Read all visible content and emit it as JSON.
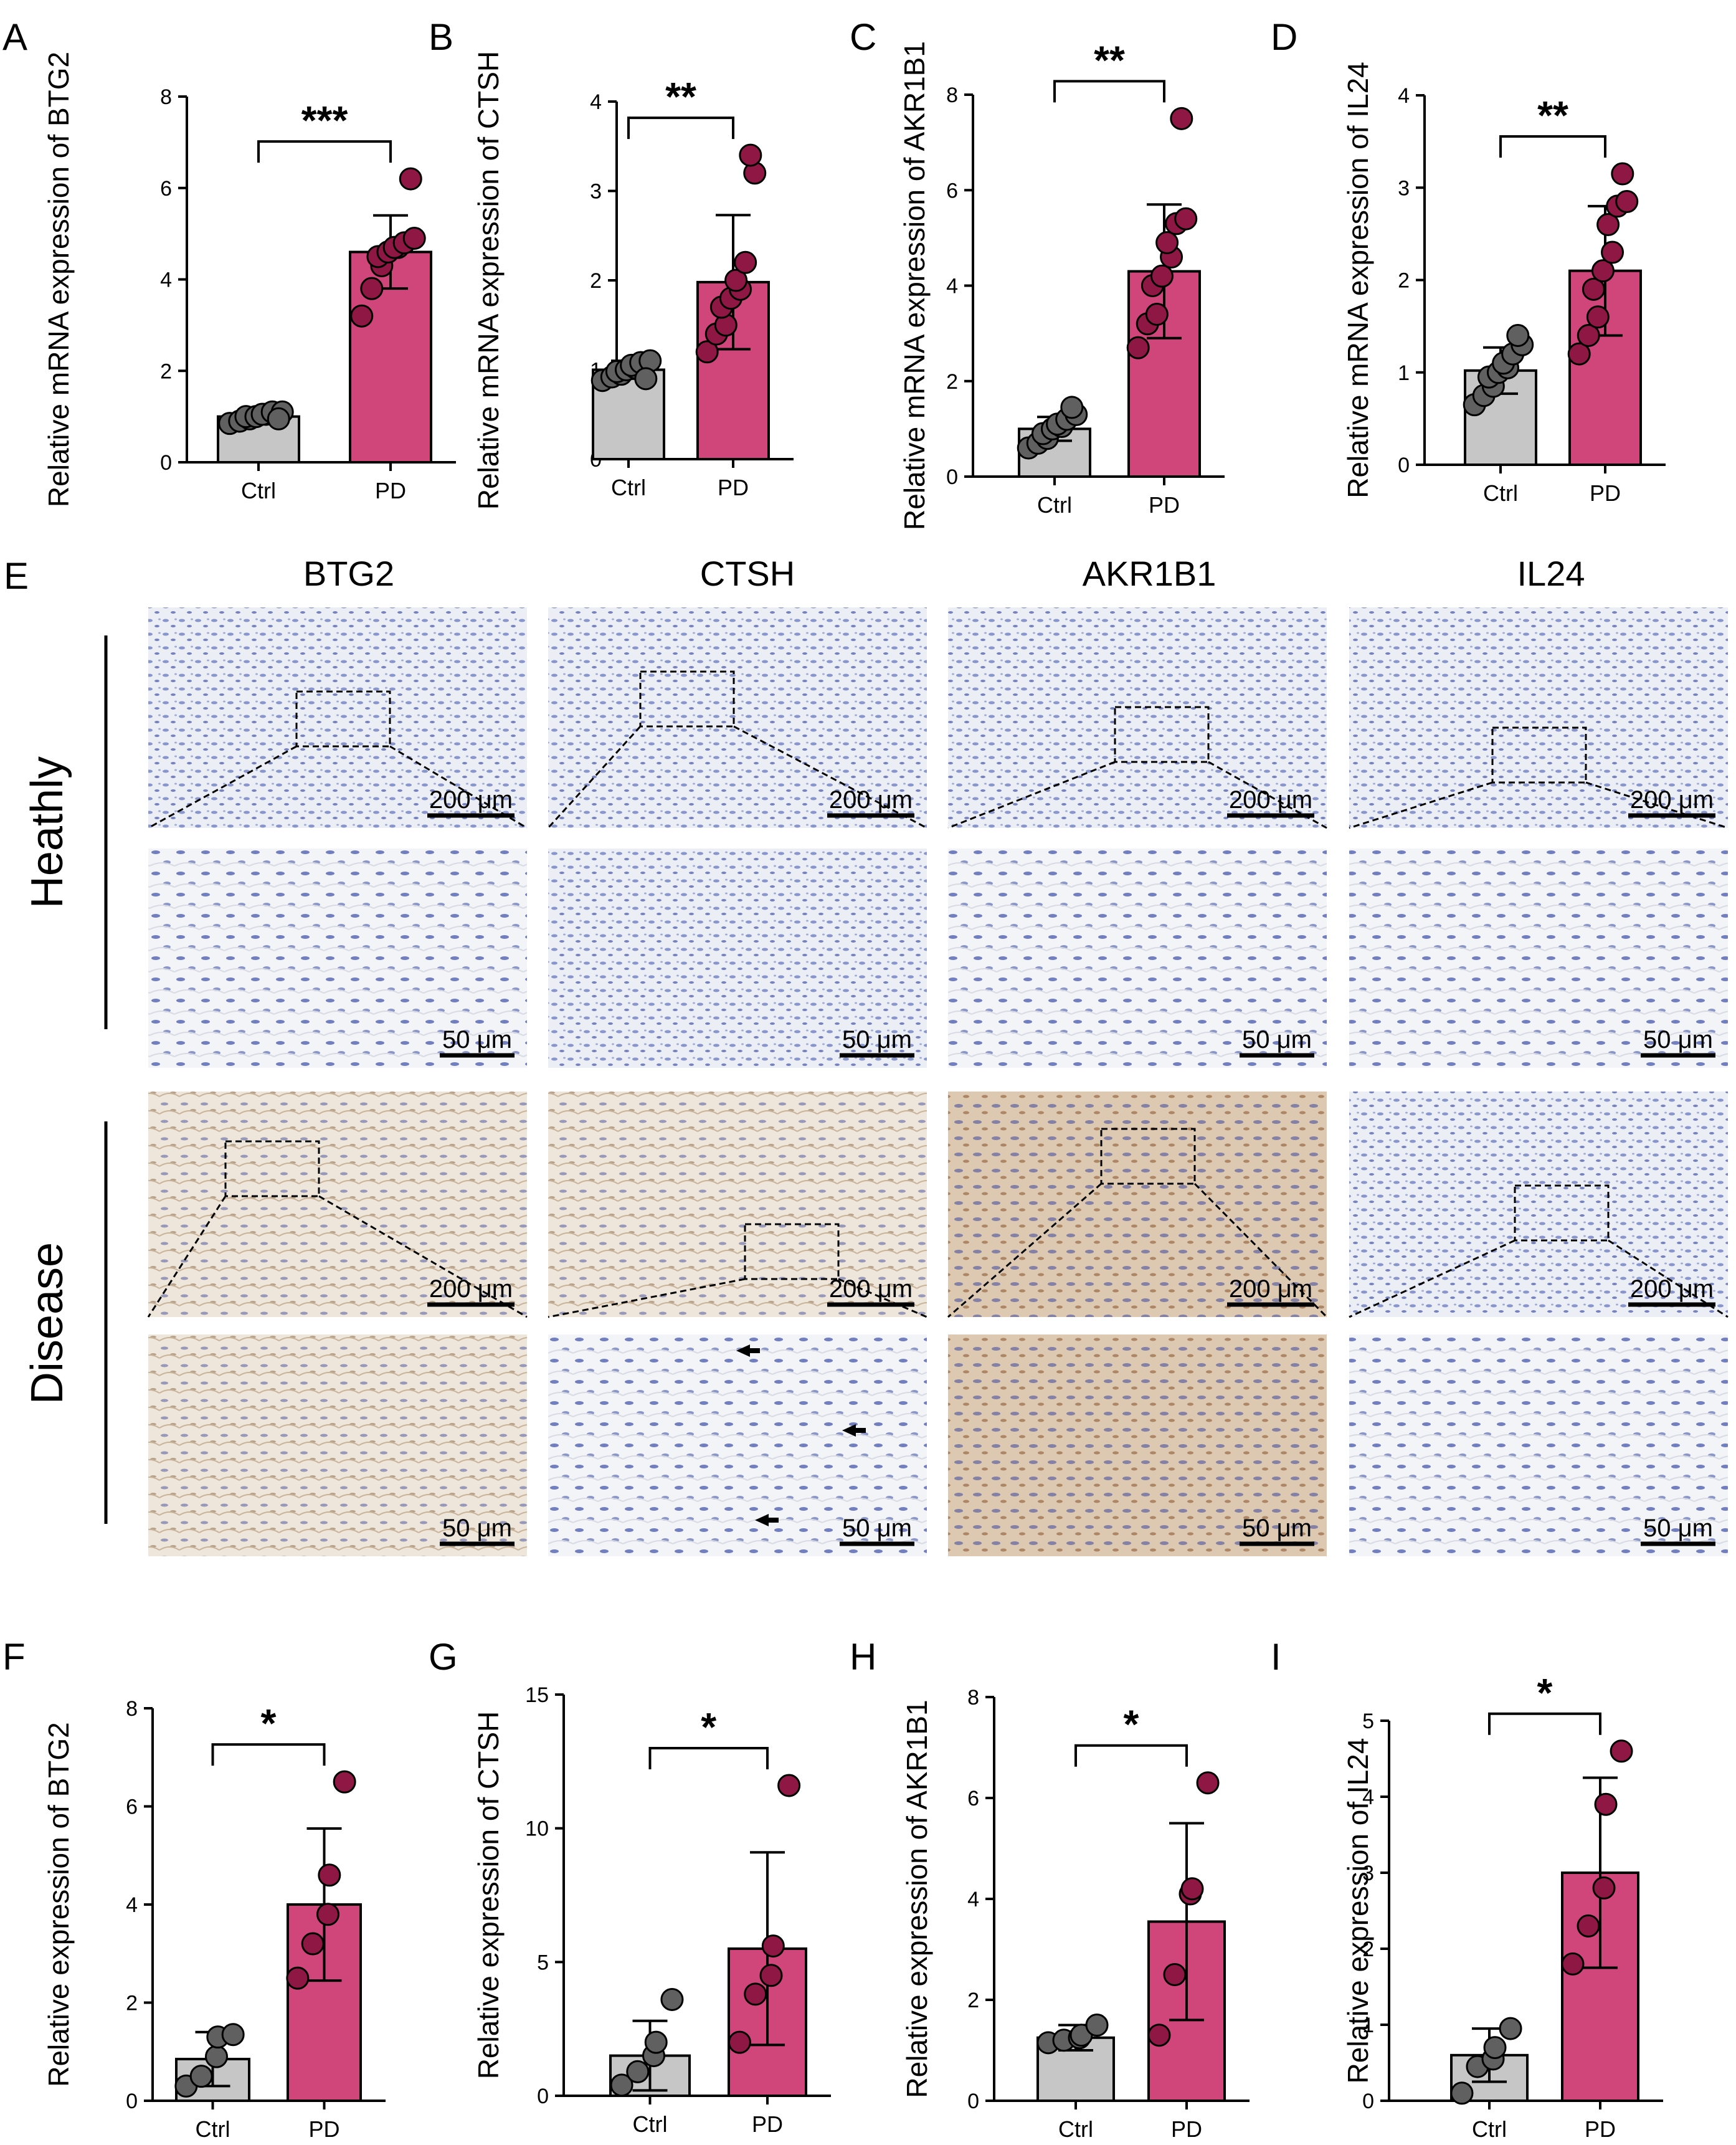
{
  "colors": {
    "ctrl": "#c6c6c6",
    "pd": "#d0467a",
    "ctrl_dot": "#606060",
    "pd_dot": "#8e1744"
  },
  "chart_data": [
    {
      "panel": "A",
      "type": "bar",
      "ylabel": "Relative mRNA expression of BTG2",
      "categories": [
        "Ctrl",
        "PD"
      ],
      "means": [
        1.0,
        4.6
      ],
      "sd": [
        0.15,
        0.8
      ],
      "ylim": [
        0,
        8
      ],
      "yticks": [
        0,
        2,
        4,
        6,
        8
      ],
      "significance": "***",
      "points": [
        [
          0.85,
          0.9,
          0.95,
          1.0,
          1.0,
          1.05,
          1.05,
          1.1,
          1.1,
          0.95
        ],
        [
          3.2,
          3.8,
          4.3,
          4.5,
          4.6,
          4.7,
          4.7,
          4.8,
          4.9,
          6.2
        ]
      ]
    },
    {
      "panel": "B",
      "type": "bar",
      "ylabel": "Relative mRNA expression of  CTSH",
      "categories": [
        "Ctrl",
        "PD"
      ],
      "means": [
        1.0,
        1.98
      ],
      "sd": [
        0.1,
        0.75
      ],
      "ylim": [
        0,
        4
      ],
      "yticks": [
        0,
        1,
        2,
        3,
        4
      ],
      "significance": "**",
      "points": [
        [
          0.88,
          0.92,
          0.95,
          0.98,
          1.0,
          1.02,
          1.05,
          1.08,
          1.1,
          0.9
        ],
        [
          1.2,
          1.4,
          1.5,
          1.7,
          1.8,
          1.9,
          2.0,
          2.2,
          3.2,
          3.4
        ]
      ]
    },
    {
      "panel": "C",
      "type": "bar",
      "ylabel": "Relative mRNA expression of AKR1B1",
      "categories": [
        "Ctrl",
        "PD"
      ],
      "means": [
        1.0,
        4.3
      ],
      "sd": [
        0.25,
        1.4
      ],
      "ylim": [
        0,
        8
      ],
      "yticks": [
        0,
        2,
        4,
        6,
        8
      ],
      "significance": "**",
      "points": [
        [
          0.6,
          0.7,
          0.8,
          0.9,
          1.0,
          1.05,
          1.1,
          1.2,
          1.3,
          1.45
        ],
        [
          2.7,
          3.2,
          3.4,
          4.0,
          4.2,
          4.6,
          4.9,
          5.3,
          5.4,
          7.5
        ]
      ]
    },
    {
      "panel": "D",
      "type": "bar",
      "ylabel": "Relative mRNA expression of  IL24",
      "categories": [
        "Ctrl",
        "PD"
      ],
      "means": [
        1.02,
        2.1
      ],
      "sd": [
        0.25,
        0.7
      ],
      "ylim": [
        0,
        4
      ],
      "yticks": [
        0,
        1,
        2,
        3,
        4
      ],
      "significance": "**",
      "points": [
        [
          0.65,
          0.75,
          0.85,
          0.95,
          1.0,
          1.05,
          1.1,
          1.2,
          1.3,
          1.4
        ],
        [
          1.2,
          1.4,
          1.6,
          1.9,
          2.1,
          2.3,
          2.6,
          2.8,
          2.85,
          3.15
        ]
      ]
    },
    {
      "panel": "F",
      "type": "bar",
      "ylabel": "Relative expression of BTG2",
      "categories": [
        "Ctrl",
        "PD"
      ],
      "means": [
        0.85,
        4.0
      ],
      "sd": [
        0.55,
        1.55
      ],
      "ylim": [
        0,
        8
      ],
      "yticks": [
        0,
        2,
        4,
        6,
        8
      ],
      "significance": "*",
      "points": [
        [
          0.3,
          0.5,
          0.9,
          1.3,
          1.35
        ],
        [
          2.5,
          3.2,
          3.8,
          4.6,
          6.5
        ]
      ]
    },
    {
      "panel": "G",
      "type": "bar",
      "ylabel": "Relative expression of CTSH",
      "categories": [
        "Ctrl",
        "PD"
      ],
      "means": [
        1.5,
        5.5
      ],
      "sd": [
        1.3,
        3.6
      ],
      "ylim": [
        0,
        15
      ],
      "yticks": [
        0,
        5,
        10,
        15
      ],
      "significance": "*",
      "points": [
        [
          0.4,
          0.9,
          1.5,
          2.0,
          3.6
        ],
        [
          2.0,
          3.8,
          4.5,
          5.6,
          11.6
        ]
      ]
    },
    {
      "panel": "H",
      "type": "bar",
      "ylabel": "Relative expression of AKR1B1",
      "categories": [
        "Ctrl",
        "PD"
      ],
      "means": [
        1.25,
        3.55
      ],
      "sd": [
        0.25,
        1.95
      ],
      "ylim": [
        0,
        8
      ],
      "yticks": [
        0,
        2,
        4,
        6,
        8
      ],
      "significance": "*",
      "points": [
        [
          1.15,
          1.2,
          1.25,
          1.3,
          1.5
        ],
        [
          1.3,
          2.5,
          4.1,
          4.2,
          6.3
        ]
      ]
    },
    {
      "panel": "I",
      "type": "bar",
      "ylabel": "Relative expression of IL24",
      "categories": [
        "Ctrl",
        "PD"
      ],
      "means": [
        0.6,
        3.0
      ],
      "sd": [
        0.35,
        1.25
      ],
      "ylim": [
        0,
        5
      ],
      "yticks": [
        0,
        1,
        2,
        3,
        4,
        5
      ],
      "significance": "*",
      "points": [
        [
          0.1,
          0.45,
          0.55,
          0.7,
          0.95
        ],
        [
          1.8,
          2.3,
          2.8,
          3.9,
          4.6
        ]
      ]
    }
  ],
  "panel_E": {
    "label": "E",
    "columns": [
      "BTG2",
      "CTSH",
      "AKR1B1",
      "IL24"
    ],
    "rows": [
      "Heathly",
      "Disease"
    ],
    "scale_low": "200 μm",
    "scale_high": "50 μm"
  }
}
